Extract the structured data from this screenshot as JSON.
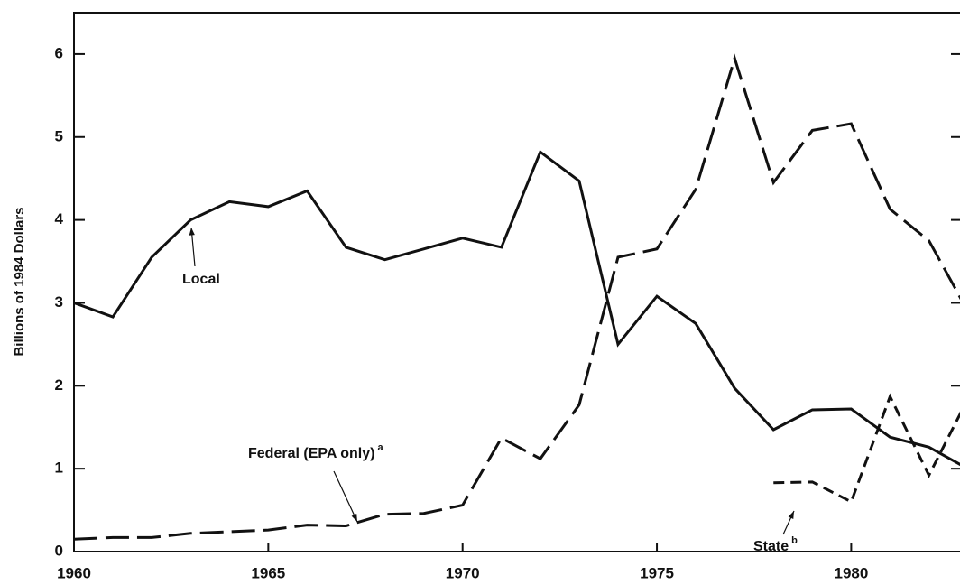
{
  "chart_data": {
    "type": "line",
    "y_label": "Billions of 1984 Dollars",
    "x": [
      1960,
      1961,
      1962,
      1963,
      1964,
      1965,
      1966,
      1967,
      1968,
      1969,
      1970,
      1971,
      1972,
      1973,
      1974,
      1975,
      1976,
      1977,
      1978,
      1979,
      1980,
      1981,
      1982,
      1983
    ],
    "series": [
      {
        "name": "Local",
        "color": "#111111",
        "dash": "solid",
        "values": [
          3.0,
          2.83,
          3.55,
          4.0,
          4.22,
          4.16,
          4.35,
          3.67,
          3.52,
          3.65,
          3.78,
          3.67,
          4.82,
          4.47,
          2.5,
          3.08,
          2.75,
          1.97,
          1.47,
          1.71,
          1.72,
          1.38,
          1.26,
          1.0
        ]
      },
      {
        "name": "Federal (EPA only)",
        "sup": "a",
        "color": "#111111",
        "dash": "long",
        "values": [
          0.15,
          0.17,
          0.17,
          0.22,
          0.24,
          0.26,
          0.32,
          0.31,
          0.45,
          0.46,
          0.56,
          1.37,
          1.12,
          1.77,
          3.55,
          3.65,
          4.37,
          5.95,
          4.45,
          5.08,
          5.16,
          4.13,
          3.75,
          2.9
        ]
      },
      {
        "name": "State",
        "sup": "b",
        "color": "#111111",
        "dash": "short",
        "values": [
          null,
          null,
          null,
          null,
          null,
          null,
          null,
          null,
          null,
          null,
          null,
          null,
          null,
          null,
          null,
          null,
          null,
          null,
          0.83,
          0.84,
          0.6,
          1.87,
          0.92,
          1.84
        ]
      }
    ],
    "xlim": [
      1960,
      1982.8
    ],
    "xticks": [
      1960,
      1965,
      1970,
      1975,
      1980
    ],
    "ylim": [
      0,
      6.5
    ],
    "yticks": [
      0,
      1,
      2,
      3,
      4,
      5,
      6
    ]
  }
}
